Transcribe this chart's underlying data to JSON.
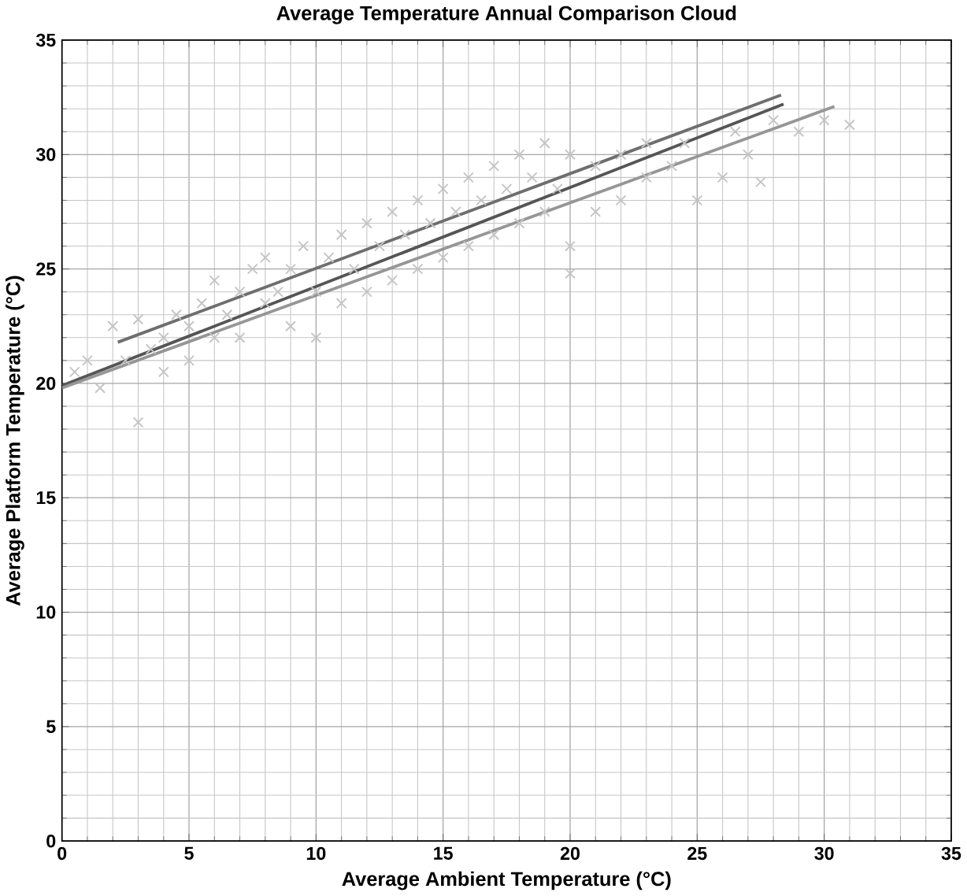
{
  "chart_data": {
    "type": "scatter",
    "title": "Average Temperature Annual Comparison Cloud",
    "xlabel": "Average  Ambient Temperature (°C)",
    "ylabel": "Average Platform Temperature (°C)",
    "xlim": [
      0,
      35
    ],
    "ylim": [
      0,
      35
    ],
    "xticks": [
      0,
      5,
      10,
      15,
      20,
      25,
      30,
      35
    ],
    "yticks": [
      0,
      5,
      10,
      15,
      20,
      25,
      30,
      35
    ],
    "grid": true,
    "series": [
      {
        "marker": "cross",
        "color": "#c4c4c4",
        "x": [
          0.5,
          1,
          1.5,
          2,
          2.5,
          3,
          3,
          3.5,
          4,
          4,
          4.5,
          5,
          5,
          5.5,
          6,
          6,
          6.5,
          7,
          7,
          7.5,
          8,
          8,
          8.5,
          9,
          9,
          9.5,
          10,
          10,
          10.5,
          11,
          11,
          11.5,
          12,
          12,
          12.5,
          13,
          13,
          13.5,
          14,
          14,
          14.5,
          15,
          15,
          15.5,
          16,
          16,
          16.5,
          17,
          17,
          17.5,
          18,
          18,
          18.5,
          19,
          19,
          19.5,
          20,
          20,
          20,
          21,
          21,
          22,
          22,
          23,
          23,
          24,
          24.5,
          25,
          26,
          26.5,
          27,
          27.5,
          28,
          29,
          30,
          31
        ],
        "values": [
          20.5,
          21,
          19.8,
          22.5,
          21,
          18.3,
          22.8,
          21.5,
          22,
          20.5,
          23,
          22.5,
          21,
          23.5,
          22,
          24.5,
          23,
          24,
          22,
          25,
          23.5,
          25.5,
          24,
          22.5,
          25,
          26,
          24,
          22,
          25.5,
          26.5,
          23.5,
          25,
          27,
          24,
          26,
          27.5,
          24.5,
          26.5,
          28,
          25,
          27,
          28.5,
          25.5,
          27.5,
          29,
          26,
          28,
          29.5,
          26.5,
          28.5,
          30,
          27,
          29,
          30.5,
          27.5,
          28.5,
          30,
          26,
          24.8,
          29.5,
          27.5,
          30,
          28,
          30.5,
          29,
          29.5,
          30.5,
          28,
          29,
          31,
          30,
          28.8,
          31.5,
          31,
          31.5,
          31.3
        ]
      },
      {
        "type": "line",
        "marker": "none",
        "color": "#6e6e6e",
        "x": [
          2.2,
          28.3
        ],
        "values": [
          21.8,
          32.6
        ]
      },
      {
        "type": "line",
        "marker": "none",
        "color": "#555555",
        "x": [
          0,
          28.4
        ],
        "values": [
          19.9,
          32.2
        ]
      },
      {
        "type": "line",
        "marker": "none",
        "color": "#969696",
        "x": [
          0,
          30.4
        ],
        "values": [
          19.8,
          32.1
        ]
      }
    ]
  }
}
